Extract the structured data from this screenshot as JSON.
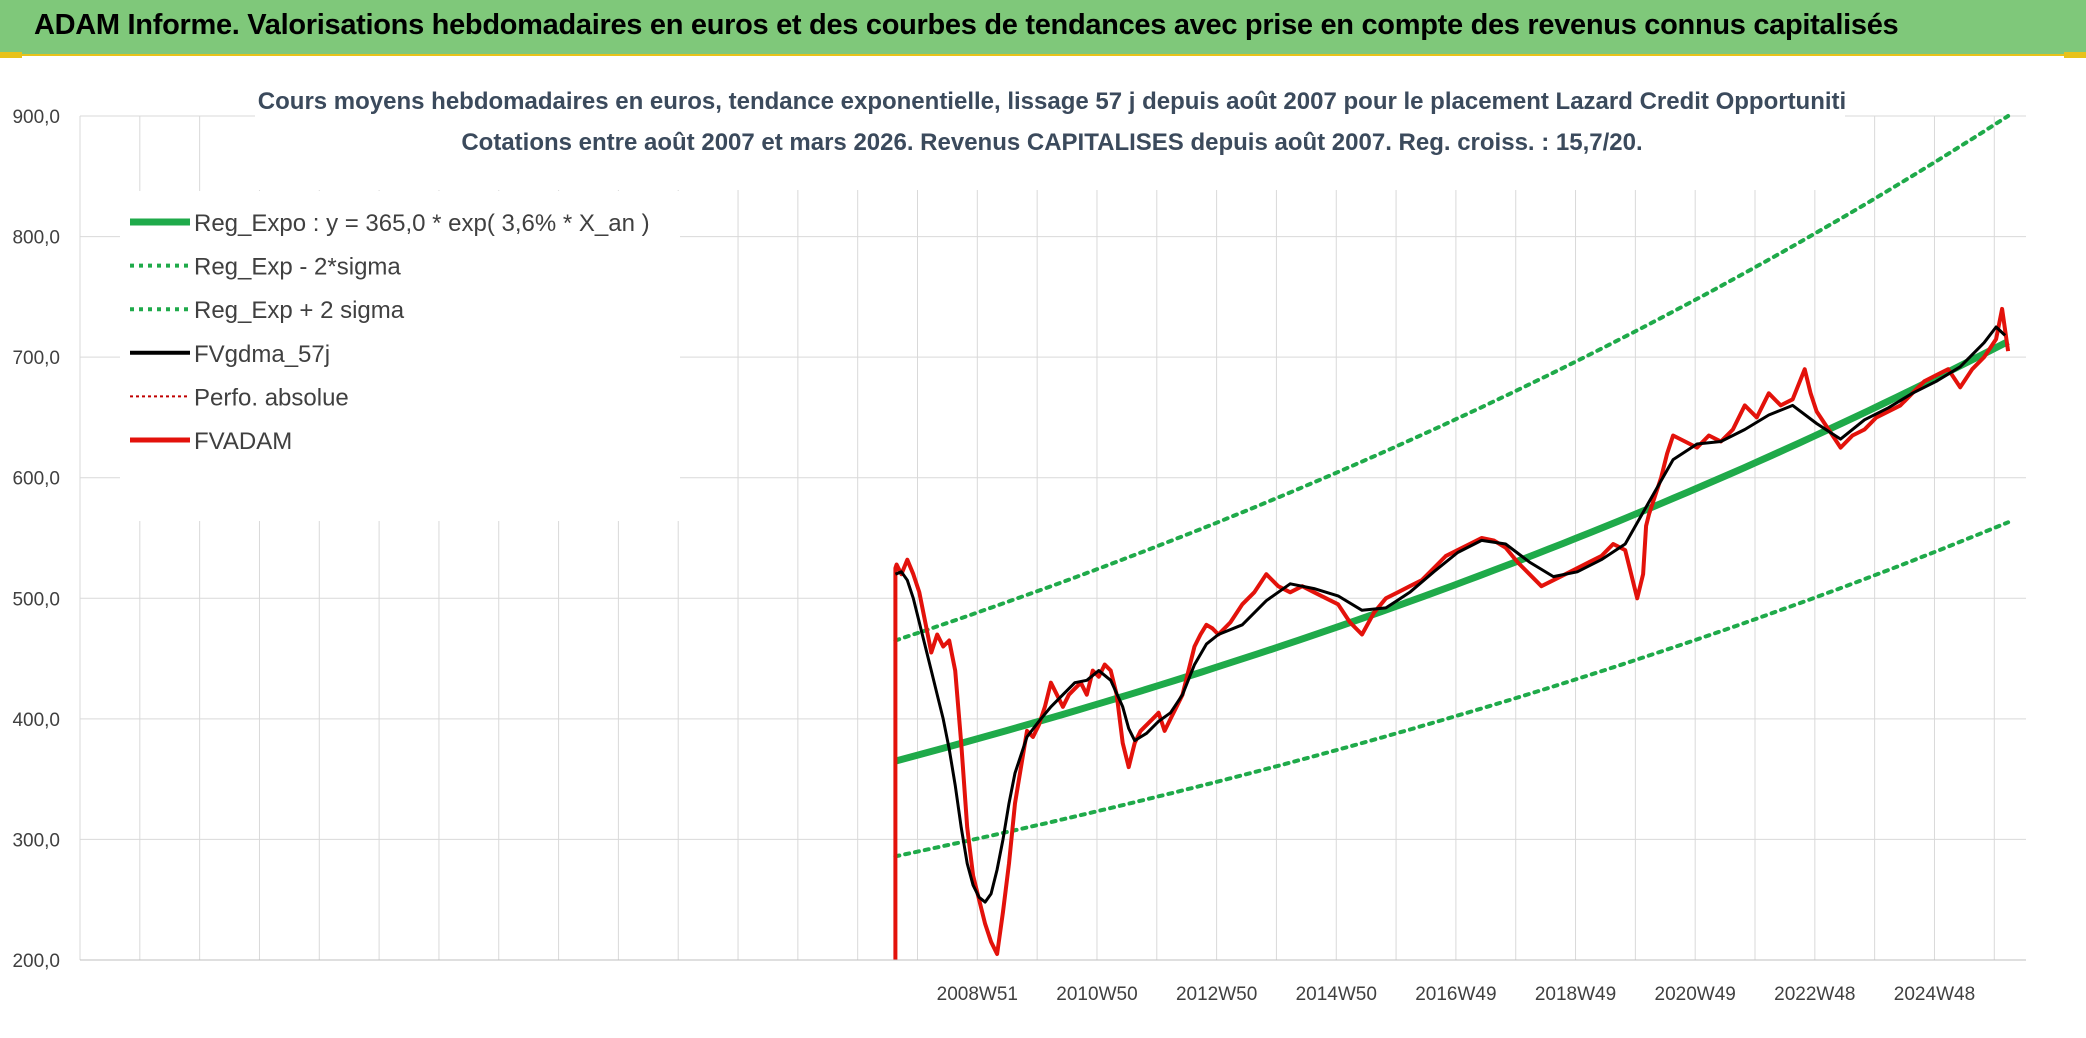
{
  "banner": {
    "title": "ADAM Informe. Valorisations hebdomadaires en euros et des courbes de tendances avec prise en compte des revenus connus capitalisés"
  },
  "colors": {
    "banner_bg": "#7fc87a",
    "reg_expo": "#1faa4a",
    "sigma_bands": "#1faa4a",
    "fvgdma": "#000000",
    "perfo": "#c00000",
    "fvadam": "#e3120b",
    "grid": "#d9d9d9"
  },
  "chart_data": {
    "type": "line",
    "title_line1": "Cours moyens hebdomadaires en euros, tendance exponentielle, lissage 57 j depuis août 2007 pour le placement Lazard Credit Opportuniti",
    "title_line2": "Cotations entre août 2007 et mars 2026. Revenus CAPITALISES depuis août 2007. Reg. croiss. : 15,7/20.",
    "ylim": [
      200,
      900
    ],
    "xlim": [
      1993.97,
      2026.5
    ],
    "y_ticks": [
      "200,0",
      "300,0",
      "400,0",
      "500,0",
      "600,0",
      "700,0",
      "800,0",
      "900,0"
    ],
    "y_tick_values": [
      200,
      300,
      400,
      500,
      600,
      700,
      800,
      900
    ],
    "x_ticks": [
      "2008W51",
      "2010W50",
      "2012W50",
      "2014W50",
      "2016W49",
      "2018W49",
      "2020W49",
      "2022W48",
      "2024W48"
    ],
    "x_tick_values": [
      2008.97,
      2010.97,
      2012.97,
      2014.97,
      2016.97,
      2018.97,
      2020.97,
      2022.97,
      2024.97
    ],
    "grid": true,
    "legend_position": "top-left",
    "legend": [
      {
        "key": "reg_expo",
        "label": "Reg_Expo : y = 365,0 * exp( 3,6% *  X_an )"
      },
      {
        "key": "minus2",
        "label": "Reg_Exp - 2*sigma"
      },
      {
        "key": "plus2",
        "label": "Reg_Exp + 2 sigma"
      },
      {
        "key": "fvgdma",
        "label": "FVgdma_57j"
      },
      {
        "key": "perfo",
        "label": "Perfo. absolue"
      },
      {
        "key": "fvadam",
        "label": "FVADAM"
      }
    ],
    "regression": {
      "base": 365.0,
      "rate": 0.036,
      "x_start": 2007.6,
      "x_end": 2026.2
    },
    "bands": {
      "minus2_start": 286,
      "minus2_end": 563,
      "plus2_start": 465,
      "plus2_end": 900
    },
    "fvadam": {
      "x": [
        2007.6,
        2007.6,
        2007.62,
        2007.7,
        2007.8,
        2007.9,
        2008.0,
        2008.1,
        2008.2,
        2008.3,
        2008.4,
        2008.5,
        2008.6,
        2008.7,
        2008.8,
        2008.9,
        2009.0,
        2009.1,
        2009.2,
        2009.3,
        2009.4,
        2009.5,
        2009.6,
        2009.7,
        2009.8,
        2009.9,
        2010.0,
        2010.1,
        2010.2,
        2010.3,
        2010.4,
        2010.5,
        2010.6,
        2010.7,
        2010.8,
        2010.9,
        2011.0,
        2011.1,
        2011.2,
        2011.3,
        2011.4,
        2011.5,
        2011.6,
        2011.7,
        2011.8,
        2011.9,
        2012.0,
        2012.1,
        2012.2,
        2012.3,
        2012.4,
        2012.5,
        2012.6,
        2012.7,
        2012.8,
        2012.9,
        2013.0,
        2013.2,
        2013.4,
        2013.6,
        2013.8,
        2014.0,
        2014.2,
        2014.4,
        2014.6,
        2014.8,
        2015.0,
        2015.2,
        2015.4,
        2015.6,
        2015.8,
        2016.0,
        2016.2,
        2016.4,
        2016.6,
        2016.8,
        2017.0,
        2017.2,
        2017.4,
        2017.6,
        2017.8,
        2018.0,
        2018.2,
        2018.4,
        2018.6,
        2018.8,
        2019.0,
        2019.2,
        2019.4,
        2019.6,
        2019.8,
        2020.0,
        2020.1,
        2020.15,
        2020.2,
        2020.3,
        2020.4,
        2020.5,
        2020.6,
        2020.8,
        2021.0,
        2021.2,
        2021.4,
        2021.6,
        2021.8,
        2022.0,
        2022.2,
        2022.4,
        2022.6,
        2022.8,
        2022.9,
        2023.0,
        2023.2,
        2023.4,
        2023.6,
        2023.8,
        2024.0,
        2024.2,
        2024.4,
        2024.6,
        2024.8,
        2025.0,
        2025.2,
        2025.4,
        2025.6,
        2025.8,
        2026.0,
        2026.1,
        2026.2
      ],
      "y": [
        200,
        525,
        528,
        520,
        532,
        520,
        505,
        480,
        455,
        470,
        460,
        465,
        440,
        380,
        310,
        270,
        250,
        230,
        215,
        205,
        240,
        280,
        330,
        360,
        390,
        385,
        395,
        410,
        430,
        420,
        410,
        420,
        425,
        430,
        420,
        440,
        435,
        445,
        440,
        420,
        380,
        360,
        380,
        390,
        395,
        400,
        405,
        390,
        400,
        410,
        420,
        440,
        460,
        470,
        478,
        475,
        470,
        480,
        495,
        505,
        520,
        510,
        505,
        510,
        505,
        500,
        495,
        480,
        470,
        488,
        500,
        505,
        510,
        515,
        525,
        535,
        540,
        545,
        550,
        548,
        542,
        530,
        520,
        510,
        515,
        520,
        525,
        530,
        535,
        545,
        540,
        500,
        520,
        560,
        570,
        585,
        600,
        620,
        635,
        630,
        625,
        635,
        630,
        640,
        660,
        650,
        670,
        660,
        665,
        690,
        670,
        655,
        640,
        625,
        635,
        640,
        650,
        655,
        660,
        670,
        680,
        685,
        690,
        675,
        690,
        700,
        715,
        740,
        705
      ]
    },
    "fvgdma": {
      "x": [
        2007.6,
        2007.7,
        2007.8,
        2007.9,
        2008.0,
        2008.1,
        2008.2,
        2008.3,
        2008.4,
        2008.5,
        2008.6,
        2008.7,
        2008.8,
        2008.9,
        2009.0,
        2009.1,
        2009.2,
        2009.3,
        2009.4,
        2009.5,
        2009.6,
        2009.7,
        2009.8,
        2010.0,
        2010.2,
        2010.4,
        2010.6,
        2010.8,
        2011.0,
        2011.2,
        2011.4,
        2011.5,
        2011.6,
        2011.8,
        2012.0,
        2012.2,
        2012.4,
        2012.6,
        2012.8,
        2013.0,
        2013.4,
        2013.8,
        2014.2,
        2014.6,
        2015.0,
        2015.4,
        2015.8,
        2016.2,
        2016.6,
        2017.0,
        2017.4,
        2017.8,
        2018.2,
        2018.6,
        2019.0,
        2019.4,
        2019.8,
        2020.2,
        2020.6,
        2021.0,
        2021.4,
        2021.8,
        2022.2,
        2022.6,
        2023.0,
        2023.4,
        2023.8,
        2024.2,
        2024.6,
        2025.0,
        2025.4,
        2025.8,
        2026.0,
        2026.15
      ],
      "y": [
        520,
        522,
        515,
        500,
        480,
        460,
        440,
        420,
        400,
        375,
        345,
        310,
        280,
        262,
        252,
        248,
        255,
        275,
        300,
        330,
        355,
        370,
        385,
        398,
        410,
        420,
        430,
        432,
        440,
        432,
        410,
        392,
        382,
        388,
        398,
        405,
        420,
        445,
        462,
        470,
        478,
        498,
        512,
        508,
        502,
        490,
        492,
        505,
        522,
        538,
        548,
        545,
        530,
        518,
        522,
        532,
        545,
        580,
        615,
        628,
        630,
        640,
        652,
        660,
        645,
        632,
        648,
        658,
        670,
        680,
        692,
        712,
        725,
        718
      ]
    }
  }
}
